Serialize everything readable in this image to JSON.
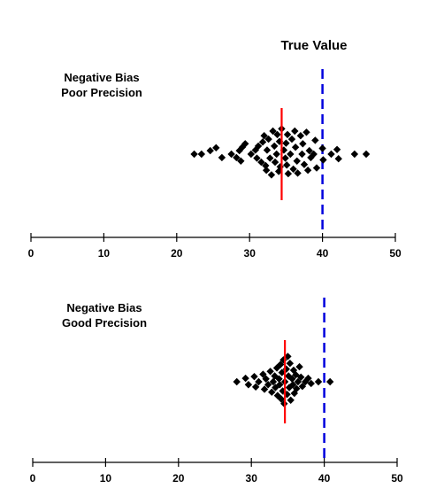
{
  "true_value_label": "True Value",
  "colors": {
    "points": "#000000",
    "mean_line": "#ff0000",
    "true_value_line": "#0000dd",
    "axis": "#000000",
    "background": "#ffffff"
  },
  "chart_data": [
    {
      "type": "scatter",
      "title_lines": [
        "Negative Bias",
        "Poor Precision"
      ],
      "xlim": [
        0,
        50
      ],
      "xticks": [
        0,
        10,
        20,
        30,
        40,
        50
      ],
      "grid": false,
      "true_value": 40,
      "mean": 34.4,
      "points": [
        {
          "x": 22.4,
          "y": 0
        },
        {
          "x": 23.4,
          "y": 0
        },
        {
          "x": 24.6,
          "y": 0.6
        },
        {
          "x": 25.4,
          "y": 1.1
        },
        {
          "x": 26.2,
          "y": -0.6
        },
        {
          "x": 27.5,
          "y": 0
        },
        {
          "x": 28.6,
          "y": 0.6
        },
        {
          "x": 28.2,
          "y": -0.6
        },
        {
          "x": 28.8,
          "y": -1.2
        },
        {
          "x": 29.0,
          "y": 1.2
        },
        {
          "x": 29.4,
          "y": 1.8
        },
        {
          "x": 30.2,
          "y": 0
        },
        {
          "x": 30.8,
          "y": 0.7
        },
        {
          "x": 31.0,
          "y": -0.7
        },
        {
          "x": 31.2,
          "y": 1.4
        },
        {
          "x": 31.6,
          "y": -1.4
        },
        {
          "x": 31.8,
          "y": 2.1
        },
        {
          "x": 32.0,
          "y": 3.2
        },
        {
          "x": 32.4,
          "y": 0.7
        },
        {
          "x": 32.2,
          "y": -2.0
        },
        {
          "x": 32.3,
          "y": -2.8
        },
        {
          "x": 32.6,
          "y": 2.6
        },
        {
          "x": 32.8,
          "y": -0.7
        },
        {
          "x": 33.0,
          "y": -3.6
        },
        {
          "x": 33.2,
          "y": 4.0
        },
        {
          "x": 33.4,
          "y": 1.4
        },
        {
          "x": 33.5,
          "y": -1.4
        },
        {
          "x": 33.7,
          "y": 0
        },
        {
          "x": 33.8,
          "y": 3.4
        },
        {
          "x": 34.0,
          "y": -3.0
        },
        {
          "x": 34.1,
          "y": 2.2
        },
        {
          "x": 34.2,
          "y": -2.2
        },
        {
          "x": 34.4,
          "y": 4.4
        },
        {
          "x": 34.7,
          "y": 0.7
        },
        {
          "x": 34.9,
          "y": -0.7
        },
        {
          "x": 35.0,
          "y": 1.9
        },
        {
          "x": 35.1,
          "y": -1.9
        },
        {
          "x": 35.2,
          "y": 3.4
        },
        {
          "x": 35.3,
          "y": -3.4
        },
        {
          "x": 35.6,
          "y": 0
        },
        {
          "x": 35.8,
          "y": 2.6
        },
        {
          "x": 36.0,
          "y": -2.6
        },
        {
          "x": 36.2,
          "y": 4.0
        },
        {
          "x": 36.3,
          "y": 1.2
        },
        {
          "x": 36.5,
          "y": -1.2
        },
        {
          "x": 36.6,
          "y": -3.3
        },
        {
          "x": 37.0,
          "y": 3.2
        },
        {
          "x": 37.2,
          "y": 0
        },
        {
          "x": 37.3,
          "y": 1.8
        },
        {
          "x": 37.5,
          "y": -1.8
        },
        {
          "x": 37.8,
          "y": 3.8
        },
        {
          "x": 38.0,
          "y": -2.8
        },
        {
          "x": 38.2,
          "y": 0.6
        },
        {
          "x": 38.4,
          "y": -0.6
        },
        {
          "x": 38.8,
          "y": 0
        },
        {
          "x": 39.0,
          "y": 2.4
        },
        {
          "x": 39.2,
          "y": -2.4
        },
        {
          "x": 40.0,
          "y": 1.0
        },
        {
          "x": 40.1,
          "y": -1.0
        },
        {
          "x": 41.2,
          "y": 0
        },
        {
          "x": 42.0,
          "y": 0.8
        },
        {
          "x": 42.2,
          "y": -0.8
        },
        {
          "x": 44.4,
          "y": 0
        },
        {
          "x": 46.0,
          "y": 0
        }
      ]
    },
    {
      "type": "scatter",
      "title_lines": [
        "Negative Bias",
        "Good Precision"
      ],
      "xlim": [
        0,
        50
      ],
      "xticks": [
        0,
        10,
        20,
        30,
        40,
        50
      ],
      "grid": false,
      "true_value": 40,
      "mean": 34.6,
      "points": [
        {
          "x": 28.0,
          "y": 0
        },
        {
          "x": 29.2,
          "y": 0.6
        },
        {
          "x": 29.6,
          "y": -0.5
        },
        {
          "x": 30.4,
          "y": 0.9
        },
        {
          "x": 30.6,
          "y": -0.9
        },
        {
          "x": 31.0,
          "y": 0
        },
        {
          "x": 31.6,
          "y": 1.3
        },
        {
          "x": 31.8,
          "y": -1.3
        },
        {
          "x": 32.0,
          "y": 0.5
        },
        {
          "x": 32.3,
          "y": -0.5
        },
        {
          "x": 32.6,
          "y": 1.8
        },
        {
          "x": 32.8,
          "y": -1.8
        },
        {
          "x": 33.0,
          "y": 0
        },
        {
          "x": 33.2,
          "y": 1.0
        },
        {
          "x": 33.3,
          "y": -1.0
        },
        {
          "x": 33.5,
          "y": 2.4
        },
        {
          "x": 33.6,
          "y": -2.4
        },
        {
          "x": 33.8,
          "y": 0.5
        },
        {
          "x": 33.9,
          "y": -0.5
        },
        {
          "x": 34.0,
          "y": 3.0
        },
        {
          "x": 34.1,
          "y": -3.0
        },
        {
          "x": 34.2,
          "y": 1.6
        },
        {
          "x": 34.3,
          "y": -1.6
        },
        {
          "x": 34.4,
          "y": 3.8
        },
        {
          "x": 34.5,
          "y": -3.8
        },
        {
          "x": 34.6,
          "y": 0
        },
        {
          "x": 34.8,
          "y": 2.2
        },
        {
          "x": 34.9,
          "y": -2.2
        },
        {
          "x": 35.0,
          "y": 4.4
        },
        {
          "x": 35.1,
          "y": 1.0
        },
        {
          "x": 35.2,
          "y": -1.0
        },
        {
          "x": 35.3,
          "y": 3.2
        },
        {
          "x": 35.4,
          "y": -3.2
        },
        {
          "x": 35.6,
          "y": 0.5
        },
        {
          "x": 35.7,
          "y": -0.5
        },
        {
          "x": 35.8,
          "y": 2.0
        },
        {
          "x": 35.9,
          "y": -2.0
        },
        {
          "x": 36.1,
          "y": 1.2
        },
        {
          "x": 36.2,
          "y": -1.2
        },
        {
          "x": 36.4,
          "y": 0
        },
        {
          "x": 36.6,
          "y": 2.6
        },
        {
          "x": 36.8,
          "y": 0.8
        },
        {
          "x": 37.0,
          "y": -0.8
        },
        {
          "x": 37.4,
          "y": 0
        },
        {
          "x": 37.8,
          "y": 0.6
        },
        {
          "x": 38.2,
          "y": -0.3
        },
        {
          "x": 39.2,
          "y": 0
        },
        {
          "x": 40.8,
          "y": 0
        }
      ]
    }
  ]
}
